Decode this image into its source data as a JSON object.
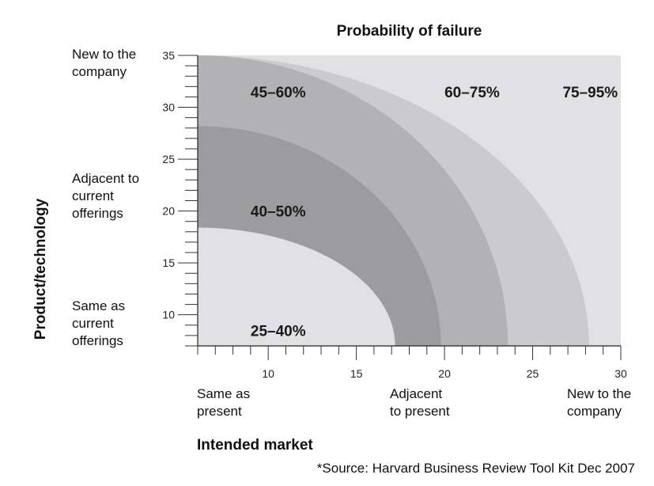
{
  "chart_data": {
    "type": "area",
    "title": "Probability of failure",
    "xlabel": "Intended market",
    "ylabel": "Product/technology",
    "xlim": [
      6,
      30
    ],
    "ylim": [
      7,
      35
    ],
    "x_ticks": [
      10,
      15,
      20,
      25,
      30
    ],
    "y_ticks": [
      10,
      15,
      20,
      25,
      30,
      35
    ],
    "x_categories": [
      {
        "label": "Same as\npresent",
        "x": 6
      },
      {
        "label": "Adjacent\nto present",
        "x": 19.5
      },
      {
        "label": "New to the\ncompany",
        "x": 29.5
      }
    ],
    "y_categories": [
      {
        "label": "New to the\ncompany",
        "y": 35
      },
      {
        "label": "Adjacent to\ncurrent\nofferings",
        "y": 22.5
      },
      {
        "label": "Same as\ncurrent\nofferings",
        "y": 10
      }
    ],
    "zones": [
      {
        "label": "75–95%",
        "color": "#e1e1e3",
        "boundary": null,
        "label_at": [
          26.7,
          31.5
        ]
      },
      {
        "label": "60–75%",
        "color": "#cbcbcd",
        "boundary": {
          "x_at_bottom": 28.2,
          "y_at_left": 35
        },
        "label_at": [
          20.0,
          31.5
        ]
      },
      {
        "label": "45–60%",
        "color": "#b2b2b4",
        "boundary": {
          "x_at_bottom": 23.6,
          "y_at_left": 35
        },
        "label_at": [
          9.0,
          31.5
        ]
      },
      {
        "label": "40–50%",
        "color": "#9c9c9e",
        "boundary": {
          "x_at_bottom": 19.8,
          "y_at_left": 28.2
        },
        "label_at": [
          9.0,
          20.0
        ]
      },
      {
        "label": "25–40%",
        "color": "#e1e1e3",
        "boundary": {
          "x_at_bottom": 17.2,
          "y_at_left": 18.4
        },
        "label_at": [
          9.0,
          8.5
        ]
      }
    ],
    "grid": false,
    "legend": "none"
  },
  "source": "*Source: Harvard Business Review Tool Kit Dec 2007"
}
